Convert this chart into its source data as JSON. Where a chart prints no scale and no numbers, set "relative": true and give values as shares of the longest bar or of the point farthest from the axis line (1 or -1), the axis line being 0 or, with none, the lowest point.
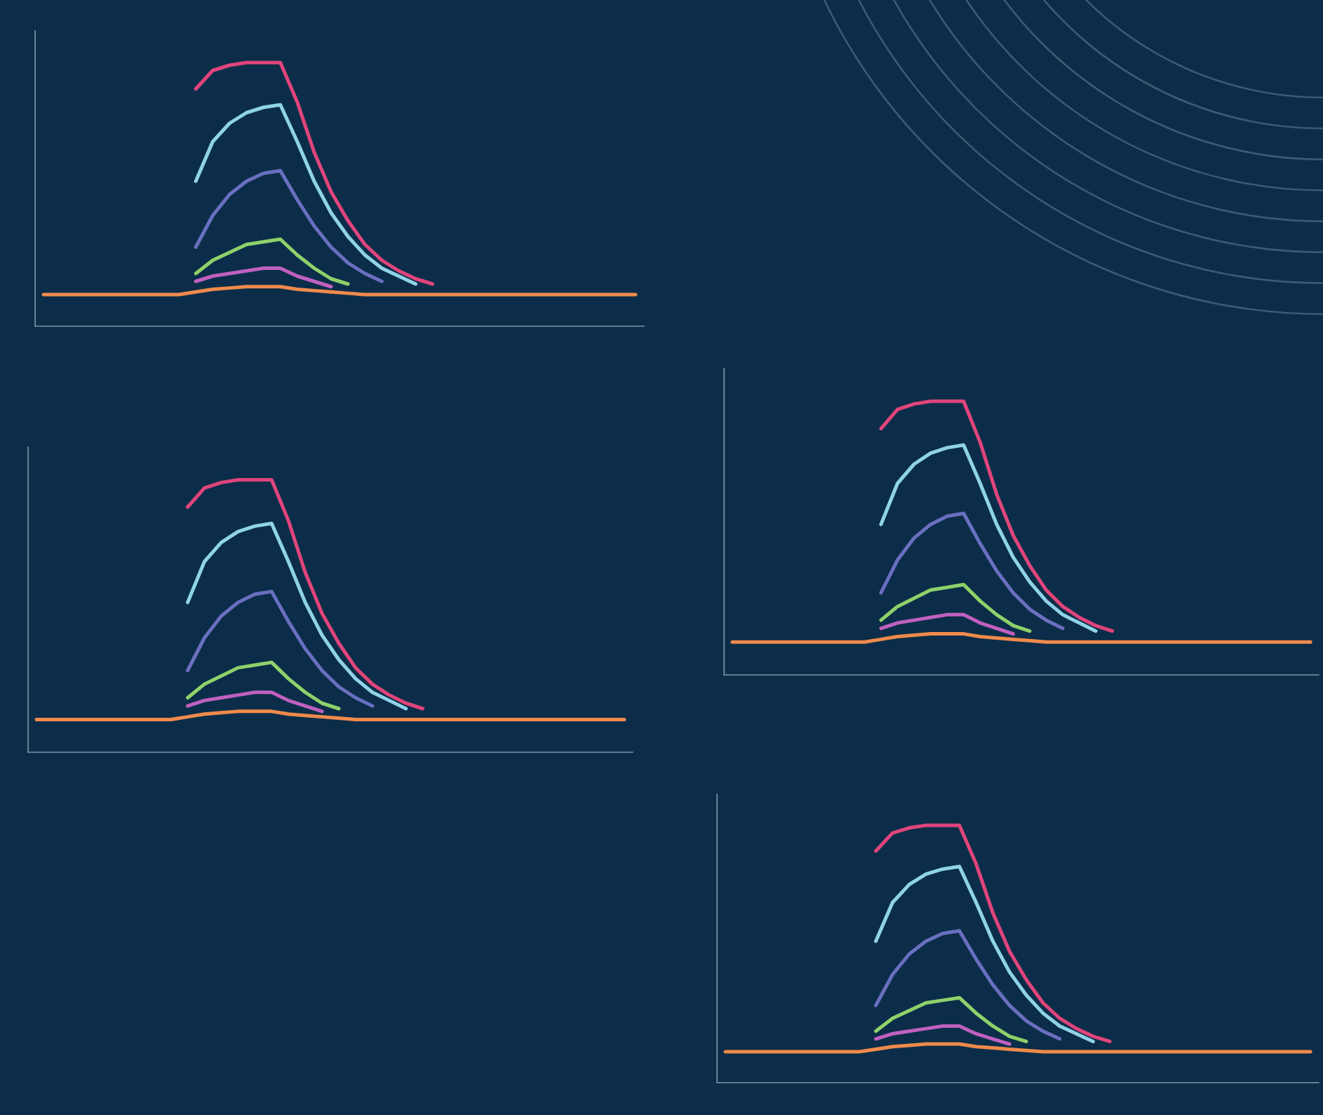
{
  "chart_data": [
    {
      "type": "line",
      "relative": true,
      "grid": false,
      "legend": false,
      "line_style": "solid",
      "marker": "none",
      "categories": [
        null,
        null,
        null,
        null,
        null,
        null,
        null,
        null,
        null,
        null,
        null,
        null,
        null,
        null,
        null,
        null,
        null,
        null,
        null,
        null,
        null,
        null,
        null,
        null,
        null,
        null,
        null,
        null,
        null,
        null,
        null,
        null,
        null,
        null,
        null,
        null
      ],
      "series": [
        {
          "color": "#f08a4b",
          "values": [
            0.12,
            0.12,
            0.12,
            0.12,
            0.12,
            0.12,
            0.12,
            0.12,
            0.12,
            0.13,
            0.14,
            0.145,
            0.15,
            0.15,
            0.15,
            0.14,
            0.135,
            0.13,
            0.125,
            0.12,
            0.12,
            0.12,
            0.12,
            0.12,
            0.12,
            0.12,
            0.12,
            0.12,
            0.12,
            0.12,
            0.12,
            0.12,
            0.12,
            0.12,
            0.12,
            0.12
          ]
        },
        {
          "color": "#c060c0",
          "values": [
            null,
            null,
            null,
            null,
            null,
            null,
            null,
            null,
            null,
            0.17,
            0.19,
            0.2,
            0.21,
            0.22,
            0.22,
            0.19,
            0.17,
            0.15,
            null,
            null,
            null,
            null,
            null,
            null,
            null,
            null,
            null,
            null,
            null,
            null,
            null,
            null,
            null,
            null,
            null,
            null
          ]
        },
        {
          "color": "#8fd16a",
          "values": [
            null,
            null,
            null,
            null,
            null,
            null,
            null,
            null,
            null,
            0.2,
            0.25,
            0.28,
            0.31,
            0.32,
            0.33,
            0.27,
            0.22,
            0.18,
            0.16,
            null,
            null,
            null,
            null,
            null,
            null,
            null,
            null,
            null,
            null,
            null,
            null,
            null,
            null,
            null,
            null,
            null
          ]
        },
        {
          "color": "#6a6fc0",
          "values": [
            null,
            null,
            null,
            null,
            null,
            null,
            null,
            null,
            null,
            0.3,
            0.42,
            0.5,
            0.55,
            0.58,
            0.59,
            0.48,
            0.38,
            0.3,
            0.24,
            0.2,
            0.17,
            null,
            null,
            null,
            null,
            null,
            null,
            null,
            null,
            null,
            null,
            null,
            null,
            null,
            null,
            null
          ]
        },
        {
          "color": "#8fd3e8",
          "values": [
            null,
            null,
            null,
            null,
            null,
            null,
            null,
            null,
            null,
            0.55,
            0.7,
            0.77,
            0.81,
            0.83,
            0.84,
            0.7,
            0.55,
            0.43,
            0.34,
            0.27,
            0.22,
            0.19,
            0.16,
            null,
            null,
            null,
            null,
            null,
            null,
            null,
            null,
            null,
            null,
            null,
            null,
            null
          ]
        },
        {
          "color": "#e0457b",
          "values": [
            null,
            null,
            null,
            null,
            null,
            null,
            null,
            null,
            null,
            0.9,
            0.97,
            0.99,
            1.0,
            1.0,
            1.0,
            0.85,
            0.66,
            0.51,
            0.4,
            0.31,
            0.25,
            0.21,
            0.18,
            0.16,
            null,
            null,
            null,
            null,
            null,
            null,
            null,
            null,
            null,
            null,
            null,
            null
          ]
        }
      ]
    },
    {
      "type": "line",
      "relative": true,
      "grid": false,
      "legend": false,
      "line_style": "solid",
      "marker": "none",
      "categories": [
        null,
        null,
        null,
        null,
        null,
        null,
        null,
        null,
        null,
        null,
        null,
        null,
        null,
        null,
        null,
        null,
        null,
        null,
        null,
        null,
        null,
        null,
        null,
        null,
        null,
        null,
        null,
        null,
        null,
        null,
        null,
        null,
        null,
        null,
        null,
        null
      ],
      "series": [
        {
          "color": "#f08a4b",
          "values": [
            0.12,
            0.12,
            0.12,
            0.12,
            0.12,
            0.12,
            0.12,
            0.12,
            0.12,
            0.13,
            0.14,
            0.145,
            0.15,
            0.15,
            0.15,
            0.14,
            0.135,
            0.13,
            0.125,
            0.12,
            0.12,
            0.12,
            0.12,
            0.12,
            0.12,
            0.12,
            0.12,
            0.12,
            0.12,
            0.12,
            0.12,
            0.12,
            0.12,
            0.12,
            0.12,
            0.12
          ]
        },
        {
          "color": "#c060c0",
          "values": [
            null,
            null,
            null,
            null,
            null,
            null,
            null,
            null,
            null,
            0.17,
            0.19,
            0.2,
            0.21,
            0.22,
            0.22,
            0.19,
            0.17,
            0.15,
            null,
            null,
            null,
            null,
            null,
            null,
            null,
            null,
            null,
            null,
            null,
            null,
            null,
            null,
            null,
            null,
            null,
            null
          ]
        },
        {
          "color": "#8fd16a",
          "values": [
            null,
            null,
            null,
            null,
            null,
            null,
            null,
            null,
            null,
            0.2,
            0.25,
            0.28,
            0.31,
            0.32,
            0.33,
            0.27,
            0.22,
            0.18,
            0.16,
            null,
            null,
            null,
            null,
            null,
            null,
            null,
            null,
            null,
            null,
            null,
            null,
            null,
            null,
            null,
            null,
            null
          ]
        },
        {
          "color": "#6a6fc0",
          "values": [
            null,
            null,
            null,
            null,
            null,
            null,
            null,
            null,
            null,
            0.3,
            0.42,
            0.5,
            0.55,
            0.58,
            0.59,
            0.48,
            0.38,
            0.3,
            0.24,
            0.2,
            0.17,
            null,
            null,
            null,
            null,
            null,
            null,
            null,
            null,
            null,
            null,
            null,
            null,
            null,
            null,
            null
          ]
        },
        {
          "color": "#8fd3e8",
          "values": [
            null,
            null,
            null,
            null,
            null,
            null,
            null,
            null,
            null,
            0.55,
            0.7,
            0.77,
            0.81,
            0.83,
            0.84,
            0.7,
            0.55,
            0.43,
            0.34,
            0.27,
            0.22,
            0.19,
            0.16,
            null,
            null,
            null,
            null,
            null,
            null,
            null,
            null,
            null,
            null,
            null,
            null,
            null
          ]
        },
        {
          "color": "#e0457b",
          "values": [
            null,
            null,
            null,
            null,
            null,
            null,
            null,
            null,
            null,
            0.9,
            0.97,
            0.99,
            1.0,
            1.0,
            1.0,
            0.85,
            0.66,
            0.51,
            0.4,
            0.31,
            0.25,
            0.21,
            0.18,
            0.16,
            null,
            null,
            null,
            null,
            null,
            null,
            null,
            null,
            null,
            null,
            null,
            null
          ]
        }
      ]
    },
    {
      "type": "line",
      "relative": true,
      "grid": false,
      "legend": false,
      "line_style": "solid",
      "marker": "none",
      "categories": [
        null,
        null,
        null,
        null,
        null,
        null,
        null,
        null,
        null,
        null,
        null,
        null,
        null,
        null,
        null,
        null,
        null,
        null,
        null,
        null,
        null,
        null,
        null,
        null,
        null,
        null,
        null,
        null,
        null,
        null,
        null,
        null,
        null,
        null,
        null,
        null
      ],
      "series": [
        {
          "color": "#f08a4b",
          "values": [
            0.12,
            0.12,
            0.12,
            0.12,
            0.12,
            0.12,
            0.12,
            0.12,
            0.12,
            0.13,
            0.14,
            0.145,
            0.15,
            0.15,
            0.15,
            0.14,
            0.135,
            0.13,
            0.125,
            0.12,
            0.12,
            0.12,
            0.12,
            0.12,
            0.12,
            0.12,
            0.12,
            0.12,
            0.12,
            0.12,
            0.12,
            0.12,
            0.12,
            0.12,
            0.12,
            0.12
          ]
        },
        {
          "color": "#c060c0",
          "values": [
            null,
            null,
            null,
            null,
            null,
            null,
            null,
            null,
            null,
            0.17,
            0.19,
            0.2,
            0.21,
            0.22,
            0.22,
            0.19,
            0.17,
            0.15,
            null,
            null,
            null,
            null,
            null,
            null,
            null,
            null,
            null,
            null,
            null,
            null,
            null,
            null,
            null,
            null,
            null,
            null
          ]
        },
        {
          "color": "#8fd16a",
          "values": [
            null,
            null,
            null,
            null,
            null,
            null,
            null,
            null,
            null,
            0.2,
            0.25,
            0.28,
            0.31,
            0.32,
            0.33,
            0.27,
            0.22,
            0.18,
            0.16,
            null,
            null,
            null,
            null,
            null,
            null,
            null,
            null,
            null,
            null,
            null,
            null,
            null,
            null,
            null,
            null,
            null
          ]
        },
        {
          "color": "#6a6fc0",
          "values": [
            null,
            null,
            null,
            null,
            null,
            null,
            null,
            null,
            null,
            0.3,
            0.42,
            0.5,
            0.55,
            0.58,
            0.59,
            0.48,
            0.38,
            0.3,
            0.24,
            0.2,
            0.17,
            null,
            null,
            null,
            null,
            null,
            null,
            null,
            null,
            null,
            null,
            null,
            null,
            null,
            null,
            null
          ]
        },
        {
          "color": "#8fd3e8",
          "values": [
            null,
            null,
            null,
            null,
            null,
            null,
            null,
            null,
            null,
            0.55,
            0.7,
            0.77,
            0.81,
            0.83,
            0.84,
            0.7,
            0.55,
            0.43,
            0.34,
            0.27,
            0.22,
            0.19,
            0.16,
            null,
            null,
            null,
            null,
            null,
            null,
            null,
            null,
            null,
            null,
            null,
            null,
            null
          ]
        },
        {
          "color": "#e0457b",
          "values": [
            null,
            null,
            null,
            null,
            null,
            null,
            null,
            null,
            null,
            0.9,
            0.97,
            0.99,
            1.0,
            1.0,
            1.0,
            0.85,
            0.66,
            0.51,
            0.4,
            0.31,
            0.25,
            0.21,
            0.18,
            0.16,
            null,
            null,
            null,
            null,
            null,
            null,
            null,
            null,
            null,
            null,
            null,
            null
          ]
        }
      ]
    },
    {
      "type": "line",
      "relative": true,
      "grid": false,
      "legend": false,
      "line_style": "solid",
      "marker": "none",
      "categories": [
        null,
        null,
        null,
        null,
        null,
        null,
        null,
        null,
        null,
        null,
        null,
        null,
        null,
        null,
        null,
        null,
        null,
        null,
        null,
        null,
        null,
        null,
        null,
        null,
        null,
        null,
        null,
        null,
        null,
        null,
        null,
        null,
        null,
        null,
        null,
        null
      ],
      "series": [
        {
          "color": "#f08a4b",
          "values": [
            0.12,
            0.12,
            0.12,
            0.12,
            0.12,
            0.12,
            0.12,
            0.12,
            0.12,
            0.13,
            0.14,
            0.145,
            0.15,
            0.15,
            0.15,
            0.14,
            0.135,
            0.13,
            0.125,
            0.12,
            0.12,
            0.12,
            0.12,
            0.12,
            0.12,
            0.12,
            0.12,
            0.12,
            0.12,
            0.12,
            0.12,
            0.12,
            0.12,
            0.12,
            0.12,
            0.12
          ]
        },
        {
          "color": "#c060c0",
          "values": [
            null,
            null,
            null,
            null,
            null,
            null,
            null,
            null,
            null,
            0.17,
            0.19,
            0.2,
            0.21,
            0.22,
            0.22,
            0.19,
            0.17,
            0.15,
            null,
            null,
            null,
            null,
            null,
            null,
            null,
            null,
            null,
            null,
            null,
            null,
            null,
            null,
            null,
            null,
            null,
            null
          ]
        },
        {
          "color": "#8fd16a",
          "values": [
            null,
            null,
            null,
            null,
            null,
            null,
            null,
            null,
            null,
            0.2,
            0.25,
            0.28,
            0.31,
            0.32,
            0.33,
            0.27,
            0.22,
            0.18,
            0.16,
            null,
            null,
            null,
            null,
            null,
            null,
            null,
            null,
            null,
            null,
            null,
            null,
            null,
            null,
            null,
            null,
            null
          ]
        },
        {
          "color": "#6a6fc0",
          "values": [
            null,
            null,
            null,
            null,
            null,
            null,
            null,
            null,
            null,
            0.3,
            0.42,
            0.5,
            0.55,
            0.58,
            0.59,
            0.48,
            0.38,
            0.3,
            0.24,
            0.2,
            0.17,
            null,
            null,
            null,
            null,
            null,
            null,
            null,
            null,
            null,
            null,
            null,
            null,
            null,
            null,
            null
          ]
        },
        {
          "color": "#8fd3e8",
          "values": [
            null,
            null,
            null,
            null,
            null,
            null,
            null,
            null,
            null,
            0.55,
            0.7,
            0.77,
            0.81,
            0.83,
            0.84,
            0.7,
            0.55,
            0.43,
            0.34,
            0.27,
            0.22,
            0.19,
            0.16,
            null,
            null,
            null,
            null,
            null,
            null,
            null,
            null,
            null,
            null,
            null,
            null,
            null
          ]
        },
        {
          "color": "#e0457b",
          "values": [
            null,
            null,
            null,
            null,
            null,
            null,
            null,
            null,
            null,
            0.9,
            0.97,
            0.99,
            1.0,
            1.0,
            1.0,
            0.85,
            0.66,
            0.51,
            0.4,
            0.31,
            0.25,
            0.21,
            0.18,
            0.16,
            null,
            null,
            null,
            null,
            null,
            null,
            null,
            null,
            null,
            null,
            null,
            null
          ]
        }
      ]
    }
  ]
}
